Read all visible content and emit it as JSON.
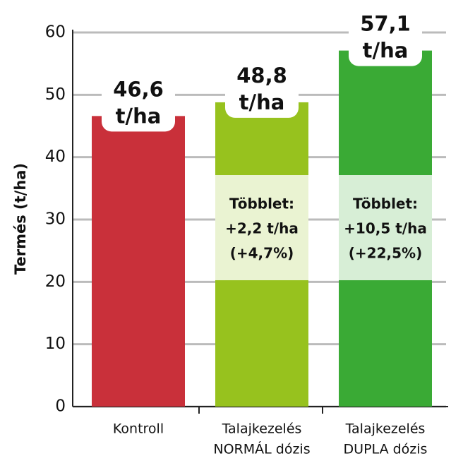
{
  "chart_data": {
    "type": "bar",
    "y_axis_label": "Termés (t/ha)",
    "categories": [
      [
        "Kontroll"
      ],
      [
        "Talajkezelés",
        "NORMÁL dózis"
      ],
      [
        "Talajkezelés",
        "DUPLA dózis"
      ]
    ],
    "values": [
      46.6,
      48.8,
      57.1
    ],
    "value_labels": [
      [
        "46,6",
        "t/ha"
      ],
      [
        "48,8",
        "t/ha"
      ],
      [
        "57,1",
        "t/ha"
      ]
    ],
    "colors": [
      "#c9303a",
      "#97c21e",
      "#3aaa35"
    ],
    "annotations": [
      [
        "Többlet:",
        "+2,2 t/ha",
        "(+4,7%)"
      ],
      [
        "Többlet:",
        "+10,5 t/ha",
        "(+22,5%)"
      ]
    ],
    "ylim": [
      0,
      60
    ],
    "yticks": [
      0,
      10,
      20,
      30,
      40,
      50,
      60
    ],
    "grid": true
  }
}
